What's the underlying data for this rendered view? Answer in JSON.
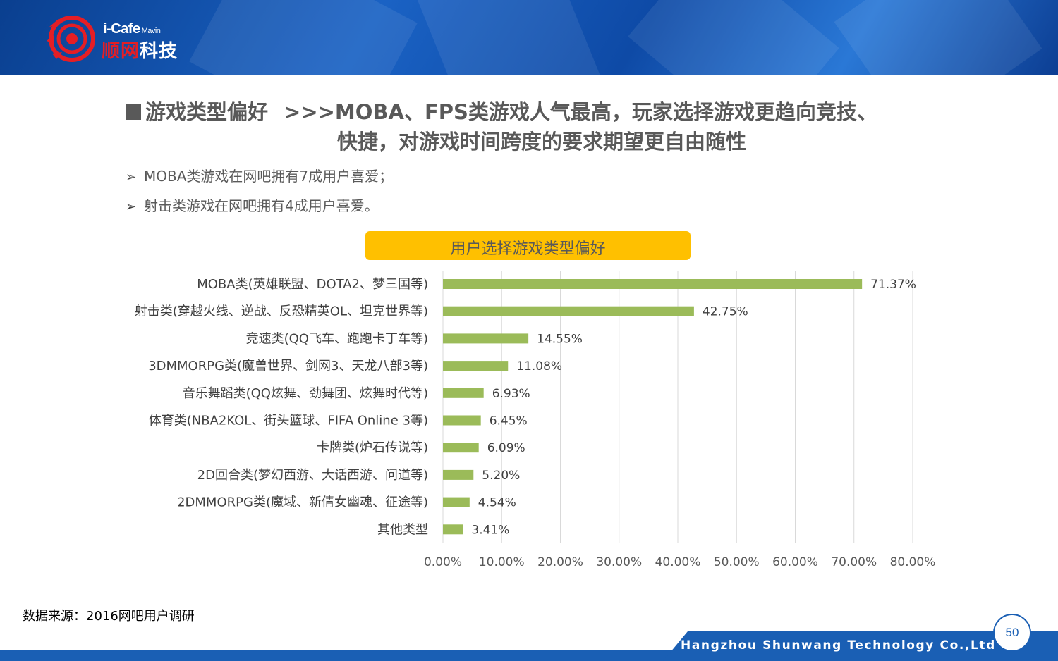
{
  "header": {
    "brand_en": "i-Cafe",
    "brand_en_sub": "Mavin",
    "brand_cn_part1": "顺网",
    "brand_cn_part2": "科技"
  },
  "headline": {
    "topic": "游戏类型偏好",
    "line1": ">>>MOBA、FPS类游戏人气最高，玩家选择游戏更趋向竞技、",
    "line2": "快捷，对游戏时间跨度的要求期望更自由随性"
  },
  "bullets": [
    {
      "arrow": "➢",
      "text": "MOBA类游戏在网吧拥有7成用户喜爱；"
    },
    {
      "arrow": "➢",
      "text": "射击类游戏在网吧拥有4成用户喜爱。"
    }
  ],
  "chart_data": {
    "type": "bar",
    "orientation": "horizontal",
    "title": "用户选择游戏类型偏好",
    "categories": [
      "MOBA类(英雄联盟、DOTA2、梦三国等)",
      "射击类(穿越火线、逆战、反恐精英OL、坦克世界等)",
      "竞速类(QQ飞车、跑跑卡丁车等)",
      "3DMMORPG类(魔兽世界、剑网3、天龙八部3等)",
      "音乐舞蹈类(QQ炫舞、劲舞团、炫舞时代等)",
      "体育类(NBA2KOL、街头篮球、FIFA Online 3等)",
      "卡牌类(炉石传说等)",
      "2D回合类(梦幻西游、大话西游、问道等)",
      "2DMMORPG类(魔域、新倩女幽魂、征途等)",
      "其他类型"
    ],
    "values": [
      71.37,
      42.75,
      14.55,
      11.08,
      6.93,
      6.45,
      6.09,
      5.2,
      4.54,
      3.41
    ],
    "value_labels": [
      "71.37%",
      "42.75%",
      "14.55%",
      "11.08%",
      "6.93%",
      "6.45%",
      "6.09%",
      "5.20%",
      "4.54%",
      "3.41%"
    ],
    "xlim": [
      0,
      80
    ],
    "x_ticks": [
      0,
      10,
      20,
      30,
      40,
      50,
      60,
      70,
      80
    ],
    "x_tick_labels": [
      "0.00%",
      "10.00%",
      "20.00%",
      "30.00%",
      "40.00%",
      "50.00%",
      "60.00%",
      "70.00%",
      "80.00%"
    ],
    "grid": true,
    "bar_color": "#9bbb59",
    "title_background": "#ffc000"
  },
  "source": "数据来源：2016网吧用户调研",
  "footer": {
    "company": "Hangzhou Shunwang Technology Co.,Ltd",
    "page_number": "50"
  },
  "colors": {
    "banner_blue": "#1a5fb4",
    "text_gray": "#595959",
    "logo_red": "#e51e25"
  }
}
